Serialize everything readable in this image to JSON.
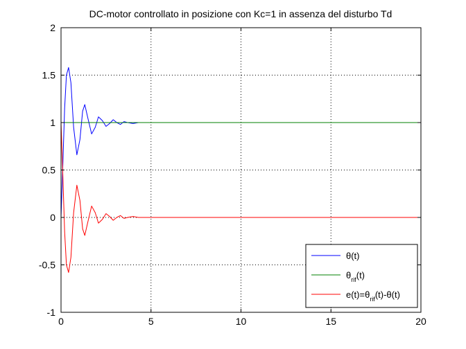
{
  "chart_data": {
    "type": "line",
    "title": "DC-motor controllato in posizione con Kc=1 in assenza del disturbo Td",
    "xlabel": "",
    "ylabel": "",
    "xlim": [
      0,
      20
    ],
    "ylim": [
      -1,
      2
    ],
    "xticks": [
      0,
      5,
      10,
      15,
      20
    ],
    "yticks": [
      -1,
      -0.5,
      0,
      0.5,
      1,
      1.5,
      2
    ],
    "xtick_labels": [
      "0",
      "5",
      "10",
      "15",
      "20"
    ],
    "ytick_labels": [
      "-1",
      "-0.5",
      "0",
      "0.5",
      "1",
      "1.5",
      "2"
    ],
    "grid": true,
    "legend_position": "bottom-right",
    "legend": [
      {
        "main": "θ(t)"
      },
      {
        "main": "θ",
        "sub": "rif",
        "tail": "(t)"
      },
      {
        "main": "e(t)=θ",
        "sub": "rif",
        "tail": "(t)-θ(t)"
      }
    ],
    "series": [
      {
        "name": "θ(t)",
        "color": "#0000ff",
        "x": [
          0,
          0.1,
          0.2,
          0.3,
          0.42,
          0.55,
          0.7,
          0.88,
          1.05,
          1.2,
          1.32,
          1.5,
          1.7,
          1.9,
          2.08,
          2.3,
          2.5,
          2.7,
          2.9,
          3.1,
          3.3,
          3.5,
          3.7,
          4.0,
          4.3,
          5,
          6,
          8,
          10,
          12,
          14,
          16,
          16.7
        ],
        "y": [
          0,
          0.55,
          1.15,
          1.5,
          1.58,
          1.42,
          0.95,
          0.66,
          0.82,
          1.12,
          1.19,
          1.04,
          0.88,
          0.95,
          1.06,
          1.02,
          0.96,
          0.99,
          1.03,
          1.0,
          0.98,
          1.01,
          1.0,
          0.99,
          1.0,
          1.0,
          1.0,
          1.0,
          1.0,
          1.0,
          1.0,
          1.0,
          1.0
        ]
      },
      {
        "name": "θrif(t)",
        "color": "#008000",
        "x": [
          0,
          20
        ],
        "y": [
          1,
          1
        ]
      },
      {
        "name": "e(t)=θrif(t)-θ(t)",
        "color": "#ff0000",
        "x": [
          0,
          0.1,
          0.2,
          0.3,
          0.42,
          0.55,
          0.7,
          0.88,
          1.05,
          1.2,
          1.32,
          1.5,
          1.7,
          1.9,
          2.08,
          2.3,
          2.5,
          2.7,
          2.9,
          3.1,
          3.3,
          3.5,
          3.7,
          4.0,
          4.3,
          5,
          8,
          12,
          16,
          20
        ],
        "y": [
          1,
          0.45,
          -0.15,
          -0.5,
          -0.58,
          -0.42,
          0.05,
          0.34,
          0.18,
          -0.12,
          -0.19,
          -0.04,
          0.12,
          0.05,
          -0.06,
          -0.02,
          0.04,
          0.01,
          -0.03,
          0.0,
          0.02,
          -0.01,
          0.0,
          0.01,
          0.0,
          0.0,
          0.0,
          0.0,
          0.0,
          0.0
        ]
      }
    ]
  }
}
